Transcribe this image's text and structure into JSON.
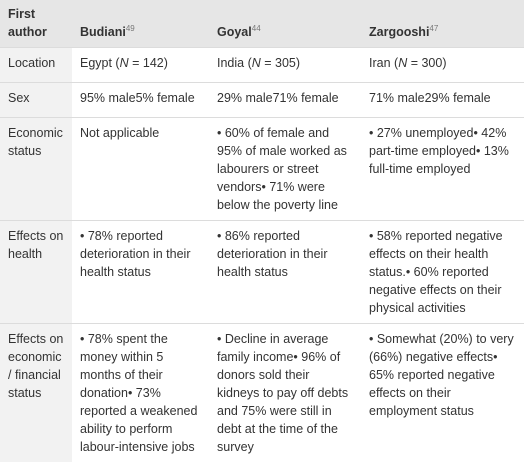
{
  "table": {
    "header": {
      "col1": "First author",
      "budiani": {
        "name": "Budiani",
        "ref": "49"
      },
      "goyal": {
        "name": "Goyal",
        "ref": "44"
      },
      "zargooshi": {
        "name": "Zargooshi",
        "ref": "47"
      }
    },
    "rows": {
      "location": {
        "label": "Location",
        "budiani": {
          "pre": "Egypt (",
          "n": "N",
          "post": " = 142)"
        },
        "goyal": {
          "pre": "India (",
          "n": "N",
          "post": " = 305)"
        },
        "zargooshi": {
          "pre": "Iran (",
          "n": "N",
          "post": " = 300)"
        }
      },
      "sex": {
        "label": "Sex",
        "budiani": "95% male5% female",
        "goyal": "29% male71% female",
        "zargooshi": "71% male29% female"
      },
      "economic": {
        "label": "Economic status",
        "budiani": "Not applicable",
        "goyal": "• 60% of female and 95% of male worked as labourers or street vendors• 71% were below the poverty line",
        "zargooshi": "• 27% unemployed• 42% part-time employed• 13% full-time employed"
      },
      "health": {
        "label": "Effects on health",
        "budiani": "• 78% reported deterioration in their health status",
        "goyal": "• 86% reported deterioration in their health status",
        "zargooshi": "• 58% reported negative effects on their health status.• 60% reported negative effects on their physical activities"
      },
      "financial": {
        "label": "Effects on economic / financial status",
        "budiani": "• 78% spent the money within 5 months of their donation• 73% reported a weakened ability to perform labour-intensive jobs",
        "goyal": "• Decline in average family income• 96% of donors sold their kidneys to pay off debts and 75% were still in debt at the time of the survey",
        "zargooshi": "• Somewhat (20%) to very (66%) negative effects• 65% reported negative effects on their employment status"
      }
    }
  }
}
